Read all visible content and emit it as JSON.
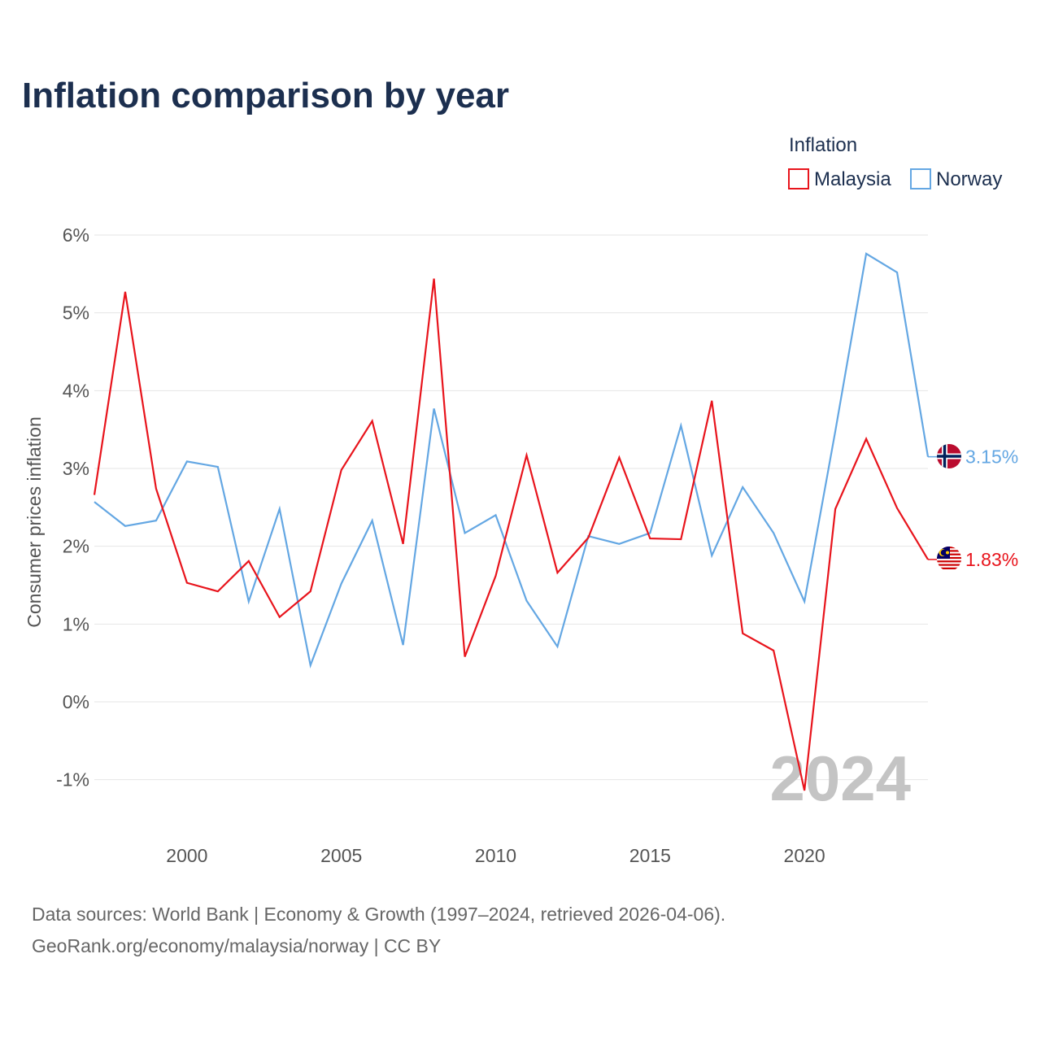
{
  "chart_data": {
    "type": "line",
    "title": "Inflation comparison by year",
    "legend_title": "Inflation",
    "legend_position": "top-right",
    "ylabel": "Consumer prices inflation",
    "xlabel": "",
    "ylim": [
      -1.5,
      6.3
    ],
    "xlim": [
      1997,
      2024
    ],
    "y_ticks": [
      {
        "value": 6,
        "label": "6%"
      },
      {
        "value": 5,
        "label": "5%"
      },
      {
        "value": 4,
        "label": "4%"
      },
      {
        "value": 3,
        "label": "3%"
      },
      {
        "value": 2,
        "label": "2%"
      },
      {
        "value": 1,
        "label": "1%"
      },
      {
        "value": 0,
        "label": "0%"
      },
      {
        "value": -1,
        "label": "-1%"
      }
    ],
    "x_ticks": [
      {
        "value": 2000,
        "label": "2000"
      },
      {
        "value": 2005,
        "label": "2005"
      },
      {
        "value": 2010,
        "label": "2010"
      },
      {
        "value": 2015,
        "label": "2015"
      },
      {
        "value": 2020,
        "label": "2020"
      }
    ],
    "grid": true,
    "x": [
      1997,
      1998,
      1999,
      2000,
      2001,
      2002,
      2003,
      2004,
      2005,
      2006,
      2007,
      2008,
      2009,
      2010,
      2011,
      2012,
      2013,
      2014,
      2015,
      2016,
      2017,
      2018,
      2019,
      2020,
      2021,
      2022,
      2023,
      2024
    ],
    "series": [
      {
        "name": "Malaysia",
        "color": "#e8141c",
        "end_label": "1.83%",
        "flag": "malaysia-flag",
        "values": [
          2.66,
          5.27,
          2.74,
          1.53,
          1.42,
          1.81,
          1.09,
          1.42,
          2.98,
          3.61,
          2.03,
          5.44,
          0.58,
          1.62,
          3.17,
          1.66,
          2.11,
          3.14,
          2.1,
          2.09,
          3.87,
          0.88,
          0.66,
          -1.14,
          2.48,
          3.38,
          2.49,
          1.83
        ]
      },
      {
        "name": "Norway",
        "color": "#64a7e3",
        "end_label": "3.15%",
        "flag": "norway-flag",
        "values": [
          2.57,
          2.26,
          2.33,
          3.09,
          3.02,
          1.29,
          2.48,
          0.47,
          1.52,
          2.33,
          0.73,
          3.77,
          2.17,
          2.4,
          1.3,
          0.71,
          2.13,
          2.03,
          2.17,
          3.55,
          1.88,
          2.76,
          2.17,
          1.29,
          3.48,
          5.76,
          5.52,
          3.15
        ]
      }
    ],
    "watermark_year": "2024"
  },
  "footer": {
    "line1": "Data sources: World Bank | Economy & Growth (1997–2024, retrieved 2026-04-06).",
    "line2": "GeoRank.org/economy/malaysia/norway | CC BY"
  }
}
